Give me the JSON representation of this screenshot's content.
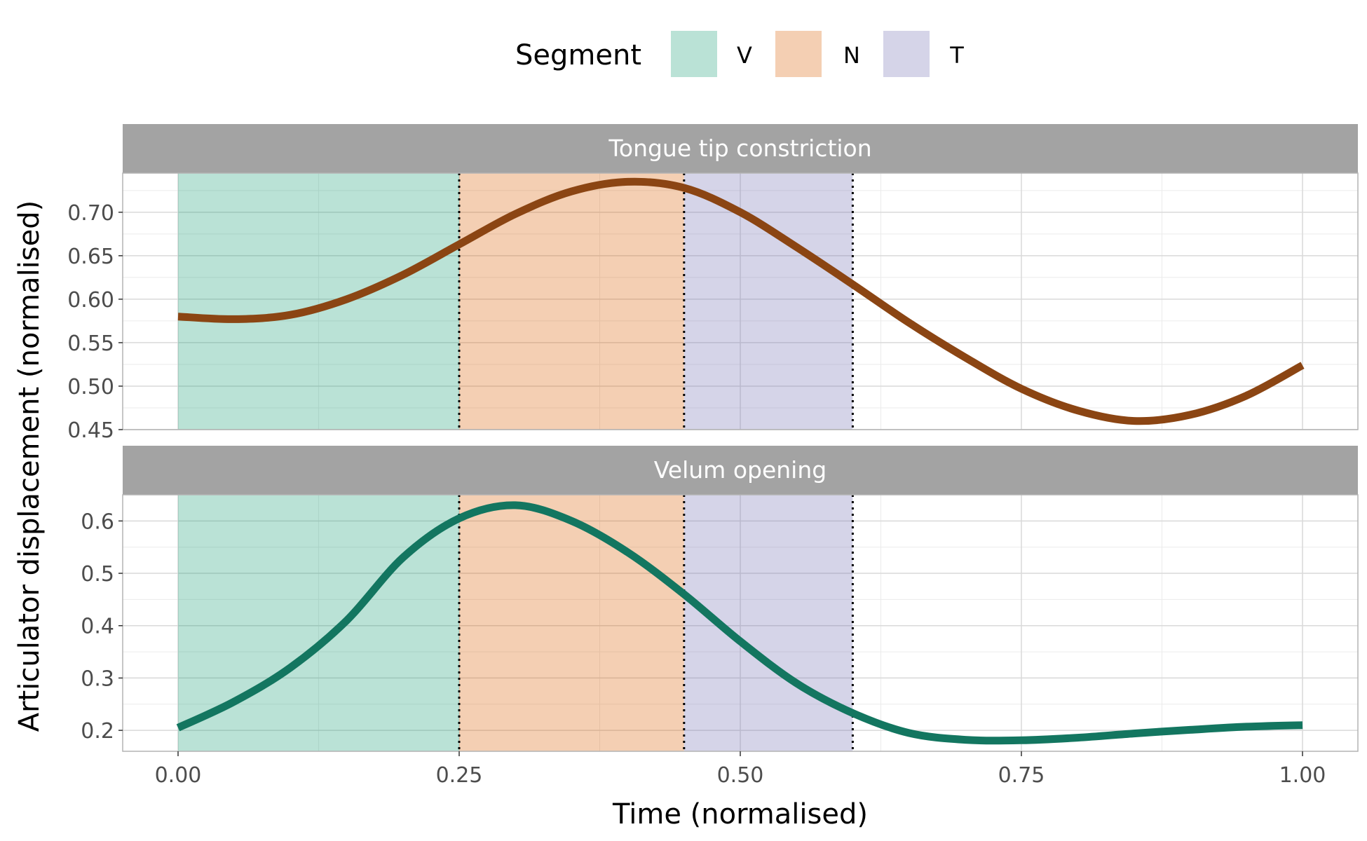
{
  "legend": {
    "title": "Segment",
    "items": [
      {
        "label": "V",
        "color": "#1b9e77"
      },
      {
        "label": "N",
        "color": "#d95f02"
      },
      {
        "label": "T",
        "color": "#7570b3"
      }
    ]
  },
  "axes": {
    "xlabel": "Time (normalised)",
    "ylabel": "Articulator displacement (normalised)",
    "x_ticks": [
      "0.00",
      "0.25",
      "0.50",
      "0.75",
      "1.00"
    ]
  },
  "chart_data": [
    {
      "type": "line",
      "title": "Tongue tip constriction",
      "line_color": "#8b4513",
      "xlim": [
        0,
        1
      ],
      "ylim": [
        0.45,
        0.745
      ],
      "y_ticks": [
        "0.45",
        "0.50",
        "0.55",
        "0.60",
        "0.65",
        "0.70"
      ],
      "y_tick_values": [
        0.45,
        0.5,
        0.55,
        0.6,
        0.65,
        0.7
      ],
      "segments": [
        {
          "label": "V",
          "start": 0.0,
          "end": 0.25
        },
        {
          "label": "N",
          "start": 0.25,
          "end": 0.45
        },
        {
          "label": "T",
          "start": 0.45,
          "end": 0.6
        }
      ],
      "boundaries": [
        0.25,
        0.45,
        0.6
      ],
      "x": [
        0.0,
        0.05,
        0.1,
        0.15,
        0.2,
        0.25,
        0.3,
        0.35,
        0.4,
        0.45,
        0.5,
        0.55,
        0.6,
        0.65,
        0.7,
        0.75,
        0.8,
        0.85,
        0.9,
        0.95,
        1.0
      ],
      "y": [
        0.58,
        0.577,
        0.582,
        0.6,
        0.628,
        0.663,
        0.698,
        0.724,
        0.735,
        0.728,
        0.7,
        0.66,
        0.617,
        0.573,
        0.533,
        0.497,
        0.472,
        0.46,
        0.467,
        0.489,
        0.524
      ]
    },
    {
      "type": "line",
      "title": "Velum opening",
      "line_color": "#137660",
      "xlim": [
        0,
        1
      ],
      "ylim": [
        0.16,
        0.65
      ],
      "y_ticks": [
        "0.2",
        "0.3",
        "0.4",
        "0.5",
        "0.6"
      ],
      "y_tick_values": [
        0.2,
        0.3,
        0.4,
        0.5,
        0.6
      ],
      "segments": [
        {
          "label": "V",
          "start": 0.0,
          "end": 0.25
        },
        {
          "label": "N",
          "start": 0.25,
          "end": 0.45
        },
        {
          "label": "T",
          "start": 0.45,
          "end": 0.6
        }
      ],
      "boundaries": [
        0.25,
        0.45,
        0.6
      ],
      "x": [
        0.0,
        0.05,
        0.1,
        0.15,
        0.2,
        0.25,
        0.3,
        0.35,
        0.4,
        0.45,
        0.5,
        0.55,
        0.6,
        0.65,
        0.7,
        0.75,
        0.8,
        0.85,
        0.9,
        0.95,
        1.0
      ],
      "y": [
        0.205,
        0.255,
        0.32,
        0.41,
        0.53,
        0.605,
        0.63,
        0.6,
        0.54,
        0.46,
        0.37,
        0.29,
        0.233,
        0.195,
        0.182,
        0.181,
        0.186,
        0.194,
        0.201,
        0.207,
        0.21
      ]
    }
  ]
}
